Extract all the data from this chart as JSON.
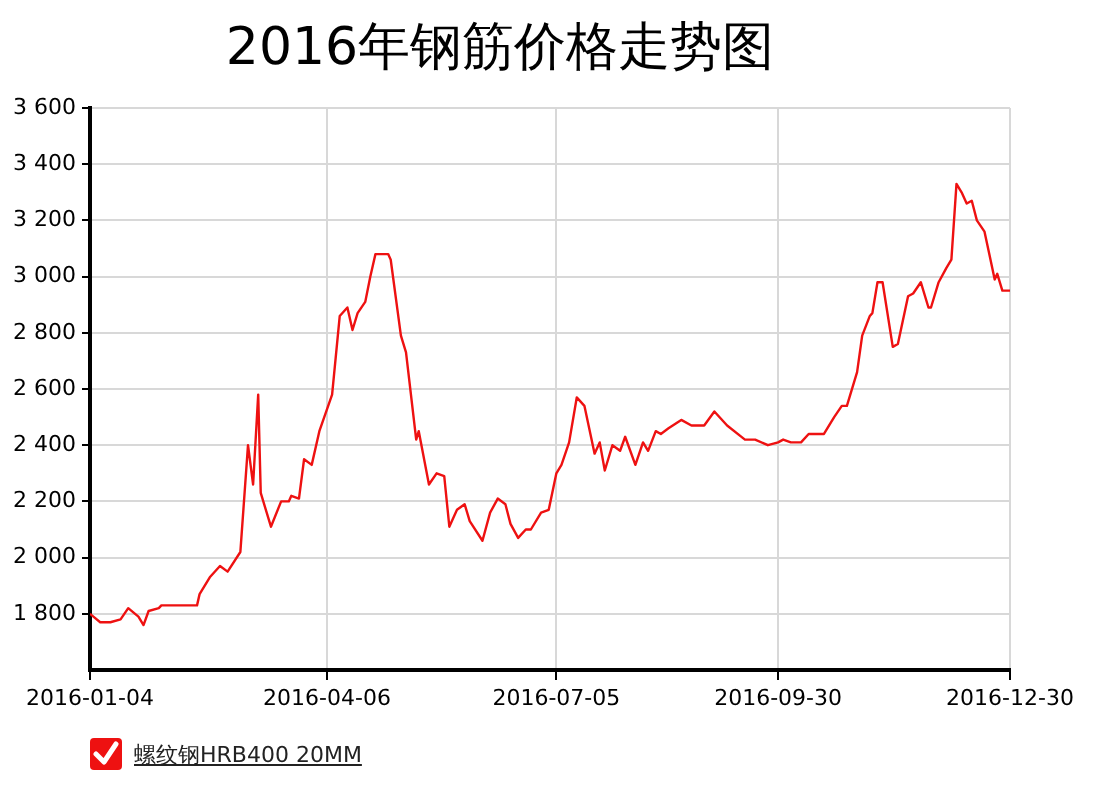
{
  "chart_data": {
    "type": "line",
    "title": "2016年钢筋价格走势图",
    "x": [
      "2016-01-04",
      "2016-01-08",
      "2016-01-12",
      "2016-01-16",
      "2016-01-19",
      "2016-01-23",
      "2016-01-25",
      "2016-01-27",
      "2016-01-31",
      "2016-02-01",
      "2016-02-15",
      "2016-02-16",
      "2016-02-20",
      "2016-02-24",
      "2016-02-27",
      "2016-03-03",
      "2016-03-06",
      "2016-03-07",
      "2016-03-08",
      "2016-03-10",
      "2016-03-11",
      "2016-03-15",
      "2016-03-19",
      "2016-03-22",
      "2016-03-23",
      "2016-03-26",
      "2016-03-28",
      "2016-03-31",
      "2016-04-03",
      "2016-04-08",
      "2016-04-11",
      "2016-04-14",
      "2016-04-16",
      "2016-04-18",
      "2016-04-21",
      "2016-04-23",
      "2016-04-25",
      "2016-04-30",
      "2016-05-01",
      "2016-05-05",
      "2016-05-07",
      "2016-05-11",
      "2016-05-12",
      "2016-05-16",
      "2016-05-19",
      "2016-05-22",
      "2016-05-24",
      "2016-05-27",
      "2016-05-30",
      "2016-06-01",
      "2016-06-06",
      "2016-06-09",
      "2016-06-12",
      "2016-06-15",
      "2016-06-17",
      "2016-06-20",
      "2016-06-23",
      "2016-06-25",
      "2016-06-29",
      "2016-07-02",
      "2016-07-05",
      "2016-07-07",
      "2016-07-10",
      "2016-07-13",
      "2016-07-16",
      "2016-07-20",
      "2016-07-22",
      "2016-07-24",
      "2016-07-27",
      "2016-07-30",
      "2016-08-01",
      "2016-08-05",
      "2016-08-08",
      "2016-08-10",
      "2016-08-13",
      "2016-08-15",
      "2016-08-18",
      "2016-08-23",
      "2016-08-27",
      "2016-09-01",
      "2016-09-05",
      "2016-09-10",
      "2016-09-17",
      "2016-09-21",
      "2016-09-26",
      "2016-09-30",
      "2016-10-02",
      "2016-10-05",
      "2016-10-09",
      "2016-10-12",
      "2016-10-18",
      "2016-10-22",
      "2016-10-25",
      "2016-10-27",
      "2016-10-31",
      "2016-11-02",
      "2016-11-05",
      "2016-11-06",
      "2016-11-08",
      "2016-11-10",
      "2016-11-14",
      "2016-11-16",
      "2016-11-20",
      "2016-11-22",
      "2016-11-25",
      "2016-11-28",
      "2016-11-29",
      "2016-12-02",
      "2016-12-05",
      "2016-12-07",
      "2016-12-09",
      "2016-12-11",
      "2016-12-13",
      "2016-12-15",
      "2016-12-17",
      "2016-12-20",
      "2016-12-24",
      "2016-12-25",
      "2016-12-27",
      "2016-12-30"
    ],
    "series": [
      {
        "name": "螺纹钢HRB400 20MM",
        "color": "#ee1111",
        "values": [
          1800,
          1770,
          1770,
          1780,
          1820,
          1790,
          1760,
          1810,
          1820,
          1830,
          1830,
          1870,
          1930,
          1970,
          1950,
          2020,
          2400,
          2330,
          2260,
          2580,
          2230,
          2110,
          2200,
          2200,
          2220,
          2210,
          2350,
          2330,
          2450,
          2580,
          2860,
          2890,
          2810,
          2870,
          2910,
          3000,
          3080,
          3080,
          3060,
          2790,
          2730,
          2420,
          2450,
          2260,
          2300,
          2290,
          2110,
          2170,
          2190,
          2130,
          2060,
          2160,
          2210,
          2190,
          2120,
          2070,
          2100,
          2100,
          2160,
          2170,
          2300,
          2330,
          2410,
          2570,
          2540,
          2370,
          2410,
          2310,
          2400,
          2380,
          2430,
          2330,
          2410,
          2380,
          2450,
          2440,
          2460,
          2490,
          2470,
          2470,
          2520,
          2470,
          2420,
          2420,
          2400,
          2410,
          2420,
          2410,
          2410,
          2440,
          2440,
          2500,
          2540,
          2540,
          2660,
          2790,
          2860,
          2870,
          2980,
          2980,
          2750,
          2760,
          2930,
          2940,
          2980,
          2890,
          2890,
          2980,
          3030,
          3060,
          3330,
          3300,
          3260,
          3270,
          3200,
          3160,
          2990,
          3010,
          2950,
          2950
        ]
      }
    ],
    "xlim": [
      "2016-01-04",
      "2016-12-30"
    ],
    "xticks": [
      "2016-01-04",
      "2016-04-06",
      "2016-07-05",
      "2016-09-30",
      "2016-12-30"
    ],
    "ylim": [
      1600,
      3600
    ],
    "yticks": [
      {
        "value": 1800,
        "label": "1 800"
      },
      {
        "value": 2000,
        "label": "2 000"
      },
      {
        "value": 2200,
        "label": "2 200"
      },
      {
        "value": 2400,
        "label": "2 400"
      },
      {
        "value": 2600,
        "label": "2 600"
      },
      {
        "value": 2800,
        "label": "2 800"
      },
      {
        "value": 3000,
        "label": "3 000"
      },
      {
        "value": 3200,
        "label": "3 200"
      },
      {
        "value": 3400,
        "label": "3 400"
      },
      {
        "value": 3600,
        "label": "3 600"
      }
    ],
    "grid": true,
    "legend": "bottom left",
    "marker": "none",
    "line_style": "solid"
  }
}
